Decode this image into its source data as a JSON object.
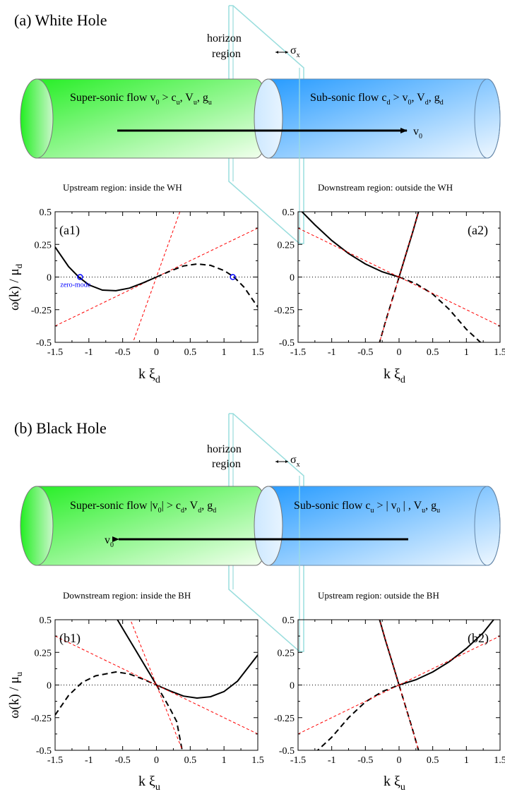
{
  "figure": {
    "panels": [
      {
        "heading": "(a)  White Hole",
        "horizon_label_1": "horizon",
        "horizon_label_2": "region",
        "sigma": "σ",
        "sigma_sub": "x",
        "left_flow": {
          "a": "Super-sonic flow v",
          "a_sub": "0",
          "b": " > c",
          "b_sub": "u",
          "c": ",  V",
          "c_sub": "u",
          "d": ",  g",
          "d_sub": "u"
        },
        "right_flow": {
          "a": "Sub-sonic flow c",
          "a_sub": "d",
          "b": " > v",
          "b_sub": "0",
          "c": ",  V",
          "c_sub": "d",
          "d": ", g",
          "d_sub": "d"
        },
        "velocity_label": "v",
        "velocity_sub": "0",
        "left_region": "Upstream region: inside the WH",
        "right_region": "Downstream region: outside the WH",
        "ylabel": "ω(k) / μ",
        "ylabel_sub": "d",
        "xlabel": "k ξ",
        "xlabel_sub": "d",
        "left_plot_label": "(a1)",
        "right_plot_label": "(a2)",
        "zero_mode_label": "zero-mode"
      },
      {
        "heading": "(b)  Black Hole",
        "horizon_label_1": "horizon",
        "horizon_label_2": "region",
        "sigma": "σ",
        "sigma_sub": "x",
        "left_flow": {
          "a": "Super-sonic flow |v",
          "a_sub": "0",
          "b": "| > c",
          "b_sub": "d",
          "c": ",  V",
          "c_sub": "d",
          "d": ",  g",
          "d_sub": "d"
        },
        "right_flow": {
          "a": "Sub-sonic flow c",
          "a_sub": "u",
          "b": " > | v",
          "b_sub": "0",
          "c": " |  ,  V",
          "c_sub": "u",
          "d": ", g",
          "d_sub": "u"
        },
        "velocity_label": "v",
        "velocity_sub": "0",
        "left_region": "Downstream region: inside the BH",
        "right_region": "Upstream region: outside the BH",
        "ylabel": "ω(k) / μ",
        "ylabel_sub": "u",
        "xlabel": "k ξ",
        "xlabel_sub": "u",
        "left_plot_label": "(b1)",
        "right_plot_label": "(b2)"
      }
    ]
  },
  "chart_data": [
    {
      "type": "line",
      "id": "a1",
      "xlim": [
        -1.5,
        1.5
      ],
      "ylim": [
        -0.5,
        0.5
      ],
      "xticks": [
        "-1.5",
        "-1",
        "-0.5",
        "0",
        "0.5",
        "1",
        "1.5"
      ],
      "yticks": [
        "-0.5",
        "-0.25",
        "0",
        "0.25",
        "0.5"
      ],
      "curves": [
        {
          "kind": "bogoliubov",
          "v": 0.0,
          "c": 1.0,
          "k": [
            0,
            0.04,
            0.08,
            0.12,
            0.16,
            0.2,
            0.24,
            0.28,
            0.32
          ],
          "style": "solid-black"
        },
        {
          "kind": "bogoliubov",
          "v": 0.0,
          "c": -1.0,
          "k": [
            -0.32,
            -0.28,
            -0.24,
            -0.2,
            -0.16,
            -0.12,
            -0.08,
            -0.04,
            0
          ],
          "style": "dashed-black"
        },
        {
          "kind": "linear",
          "slope": 1.44,
          "x": [
            -0.36,
            0.36
          ],
          "style": "dashed-red"
        },
        {
          "kind": "linear",
          "slope": 0.25,
          "x": [
            -1.5,
            1.5
          ],
          "style": "dashed-red"
        },
        {
          "kind": "points",
          "x": [
            -1.5,
            -1.3,
            -1.15,
            -1.0,
            -0.8,
            -0.6,
            -0.4,
            -0.2,
            0
          ],
          "y": [
            0.23,
            0.08,
            0.0,
            -0.06,
            -0.1,
            -0.105,
            -0.085,
            -0.045,
            0
          ],
          "style": "solid-black"
        },
        {
          "kind": "points",
          "x": [
            0,
            0.2,
            0.4,
            0.6,
            0.8,
            1.0,
            1.15,
            1.3,
            1.5
          ],
          "y": [
            0,
            0.045,
            0.085,
            0.1,
            0.09,
            0.05,
            0.0,
            -0.08,
            -0.23
          ],
          "style": "dashed-black"
        }
      ],
      "zero_modes": [
        [
          -1.13,
          0
        ],
        [
          1.13,
          0
        ]
      ]
    },
    {
      "type": "line",
      "id": "a2",
      "xlim": [
        -1.5,
        1.5
      ],
      "ylim": [
        -0.5,
        0.5
      ],
      "xticks": [
        "-1.5",
        "-1",
        "-0.5",
        "0",
        "0.5",
        "1",
        "1.5"
      ],
      "yticks": [
        "-0.5",
        "-0.25",
        "0",
        "0.25",
        "0.5"
      ],
      "curves": [
        {
          "kind": "points",
          "x": [
            -1.5,
            -1.25,
            -1.0,
            -0.75,
            -0.5,
            -0.25,
            0
          ],
          "y": [
            0.53,
            0.4,
            0.28,
            0.18,
            0.1,
            0.04,
            0
          ],
          "style": "solid-black"
        },
        {
          "kind": "points",
          "x": [
            0,
            0.25,
            0.5,
            0.75,
            1.0,
            1.25
          ],
          "y": [
            0,
            -0.05,
            -0.13,
            -0.25,
            -0.4,
            -0.52
          ],
          "style": "dashed-black"
        },
        {
          "kind": "points",
          "x": [
            0,
            0.1,
            0.2,
            0.3
          ],
          "y": [
            0,
            0.17,
            0.34,
            0.52
          ],
          "style": "solid-black"
        },
        {
          "kind": "points",
          "x": [
            -0.3,
            -0.2,
            -0.1,
            0
          ],
          "y": [
            -0.52,
            -0.34,
            -0.17,
            0
          ],
          "style": "dashed-black"
        },
        {
          "kind": "linear",
          "slope": -0.25,
          "x": [
            -1.5,
            1.5
          ],
          "style": "dashed-red"
        },
        {
          "kind": "linear",
          "slope": 1.72,
          "x": [
            -0.3,
            0.3
          ],
          "style": "dashed-red"
        }
      ]
    },
    {
      "type": "line",
      "id": "b1",
      "xlim": [
        -1.5,
        1.5
      ],
      "ylim": [
        -0.5,
        0.5
      ],
      "xticks": [
        "-1.5",
        "-1",
        "-0.5",
        "0",
        "0.5",
        "1",
        "1.5"
      ],
      "yticks": [
        "-0.5",
        "-0.25",
        "0",
        "0.25",
        "0.5"
      ],
      "curves": [
        {
          "kind": "points",
          "x": [
            -1.5,
            -1.3,
            -1.1,
            -0.9,
            -0.6,
            -0.4,
            -0.2,
            0
          ],
          "y": [
            -0.23,
            -0.08,
            0.02,
            0.07,
            0.1,
            0.085,
            0.045,
            0
          ],
          "style": "dashed-black"
        },
        {
          "kind": "points",
          "x": [
            0,
            0.2,
            0.4,
            0.6,
            0.8,
            1.0,
            1.2,
            1.5
          ],
          "y": [
            0,
            -0.045,
            -0.085,
            -0.1,
            -0.09,
            -0.05,
            0.03,
            0.23
          ],
          "style": "solid-black"
        },
        {
          "kind": "points",
          "x": [
            -0.6,
            -0.45,
            -0.3,
            -0.15,
            0
          ],
          "y": [
            0.52,
            0.39,
            0.26,
            0.13,
            0
          ],
          "style": "solid-black"
        },
        {
          "kind": "points",
          "x": [
            0,
            0.1,
            0.2,
            0.3,
            0.38
          ],
          "y": [
            0,
            -0.09,
            -0.18,
            -0.28,
            -0.5
          ],
          "style": "dashed-black"
        },
        {
          "kind": "linear",
          "slope": -0.25,
          "x": [
            -1.5,
            1.5
          ],
          "style": "dashed-red"
        },
        {
          "kind": "linear",
          "slope": -1.3,
          "x": [
            -0.4,
            0.4
          ],
          "style": "dashed-red"
        }
      ]
    },
    {
      "type": "line",
      "id": "b2",
      "xlim": [
        -1.5,
        1.5
      ],
      "ylim": [
        -0.5,
        0.5
      ],
      "xticks": [
        "-1.5",
        "-1",
        "-0.5",
        "0",
        "0.5",
        "1",
        "1.5"
      ],
      "yticks": [
        "-0.5",
        "-0.25",
        "0",
        "0.25",
        "0.5"
      ],
      "curves": [
        {
          "kind": "points",
          "x": [
            0,
            0.25,
            0.5,
            0.75,
            1.0,
            1.25,
            1.45
          ],
          "y": [
            0,
            0.04,
            0.1,
            0.18,
            0.28,
            0.4,
            0.53
          ],
          "style": "solid-black"
        },
        {
          "kind": "points",
          "x": [
            -1.25,
            -1.0,
            -0.75,
            -0.5,
            -0.25,
            0
          ],
          "y": [
            -0.52,
            -0.4,
            -0.25,
            -0.13,
            -0.05,
            0
          ],
          "style": "dashed-black"
        },
        {
          "kind": "points",
          "x": [
            -0.3,
            -0.2,
            -0.1,
            0
          ],
          "y": [
            0.52,
            0.34,
            0.17,
            0
          ],
          "style": "solid-black"
        },
        {
          "kind": "points",
          "x": [
            0,
            0.1,
            0.2,
            0.3
          ],
          "y": [
            0,
            -0.17,
            -0.34,
            -0.52
          ],
          "style": "dashed-black"
        },
        {
          "kind": "linear",
          "slope": 0.25,
          "x": [
            -1.5,
            1.5
          ],
          "style": "dashed-red"
        },
        {
          "kind": "linear",
          "slope": -1.72,
          "x": [
            -0.3,
            0.3
          ],
          "style": "dashed-red"
        }
      ]
    }
  ],
  "colors": {
    "green": "#22ee22",
    "blue": "#2299ff",
    "horizon": "#99dddd",
    "red": "#ff0000",
    "zero_mode": "#0000ff"
  }
}
